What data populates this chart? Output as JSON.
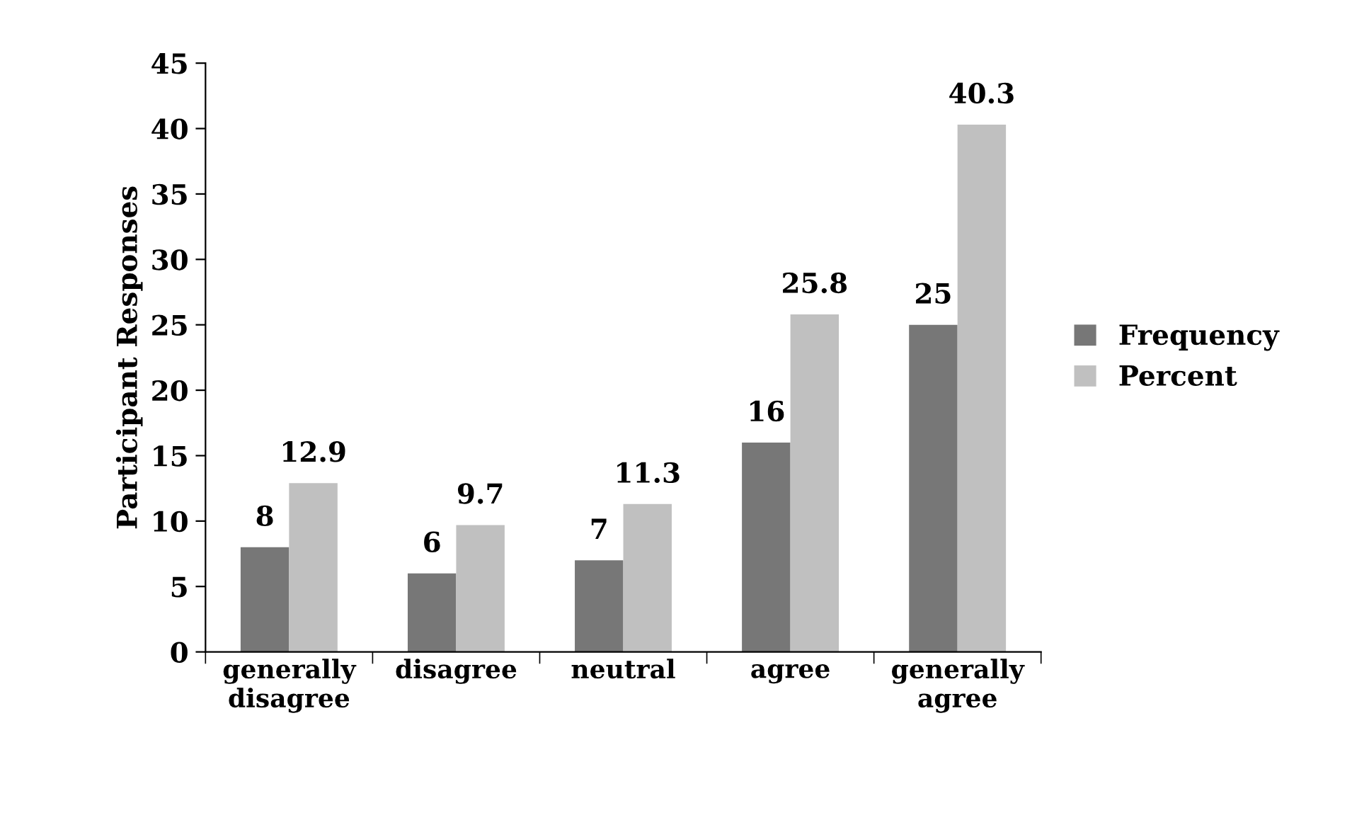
{
  "chart_data": {
    "type": "bar",
    "ylabel": "Participant Responses",
    "categories": [
      "generally disagree",
      "disagree",
      "neutral",
      "agree",
      "generally agree"
    ],
    "series": [
      {
        "name": "Frequency",
        "color": "#777777",
        "values": [
          8,
          6,
          7,
          16,
          25
        ]
      },
      {
        "name": "Percent",
        "color": "#c0c0c0",
        "values": [
          12.9,
          9.7,
          11.3,
          25.8,
          40.3
        ]
      }
    ],
    "ylim": [
      0,
      45
    ],
    "yticks": [
      0,
      5,
      10,
      15,
      20,
      25,
      30,
      35,
      40,
      45
    ],
    "data_labels": true,
    "grid": false,
    "legend": "right"
  }
}
